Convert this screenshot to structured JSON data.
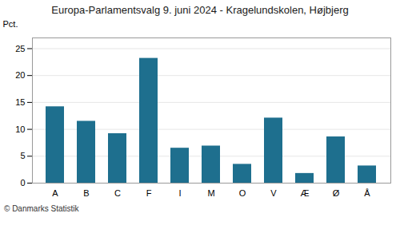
{
  "chart_data": {
    "type": "bar",
    "title": "Europa-Parlamentsvalg 9. juni 2024 - Kragelundskolen, Højbjerg",
    "ylabel": "Pct.",
    "caption": "© Danmarks Statistik",
    "categories": [
      "A",
      "B",
      "C",
      "F",
      "I",
      "M",
      "O",
      "V",
      "Æ",
      "Ø",
      "Å"
    ],
    "values": [
      14.2,
      11.5,
      9.2,
      23.2,
      6.5,
      6.9,
      3.5,
      12.1,
      1.8,
      8.6,
      3.2
    ],
    "color": "#1e6f8e",
    "ylim": [
      0,
      27
    ],
    "yticks": [
      0,
      5,
      10,
      15,
      20,
      25
    ],
    "grid": true
  }
}
